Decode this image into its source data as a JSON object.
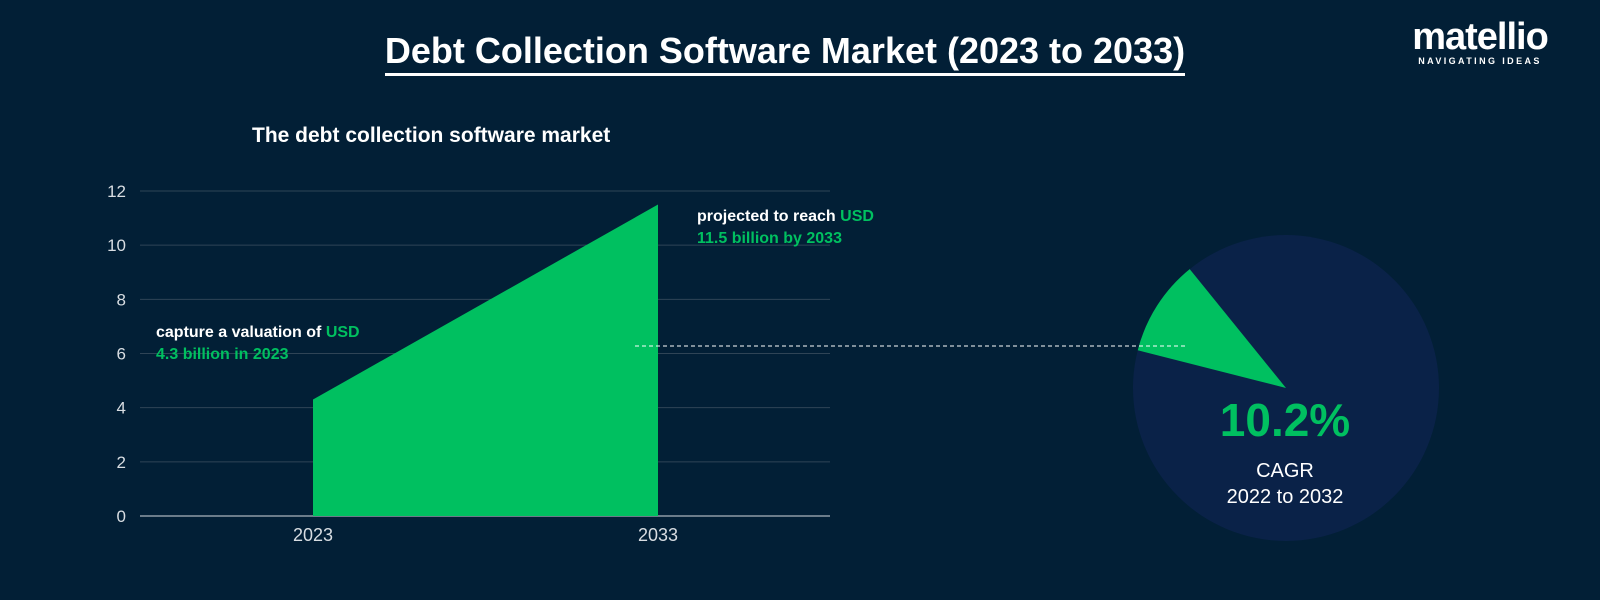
{
  "title": "Debt Collection Software Market (2023 to 2033)",
  "logo": {
    "text": "matellio",
    "tagline": "NAVIGATING IDEAS",
    "accent": "#e0252c"
  },
  "colors": {
    "background": "#021f36",
    "green": "#00c060",
    "pie_bg": "#0a2248",
    "grid": "#2f4456"
  },
  "chart_data": [
    {
      "type": "area",
      "title": "The debt collection software market",
      "categories": [
        "2023",
        "2033"
      ],
      "values": [
        4.3,
        11.5
      ],
      "ylim": [
        0,
        12
      ],
      "yticks": [
        0,
        2,
        4,
        6,
        8,
        10,
        12
      ],
      "grid": true,
      "annotations": [
        {
          "prefix": "capture a valuation of ",
          "highlight": "USD 4.3 billion in 2023"
        },
        {
          "prefix": "projected to reach ",
          "highlight": "USD 11.5 billion by 2033"
        }
      ]
    },
    {
      "type": "pie",
      "values": [
        10.2,
        89.8
      ],
      "label_value": "10.2%",
      "label_line1": "CAGR",
      "label_line2": "2022 to 2032"
    }
  ]
}
